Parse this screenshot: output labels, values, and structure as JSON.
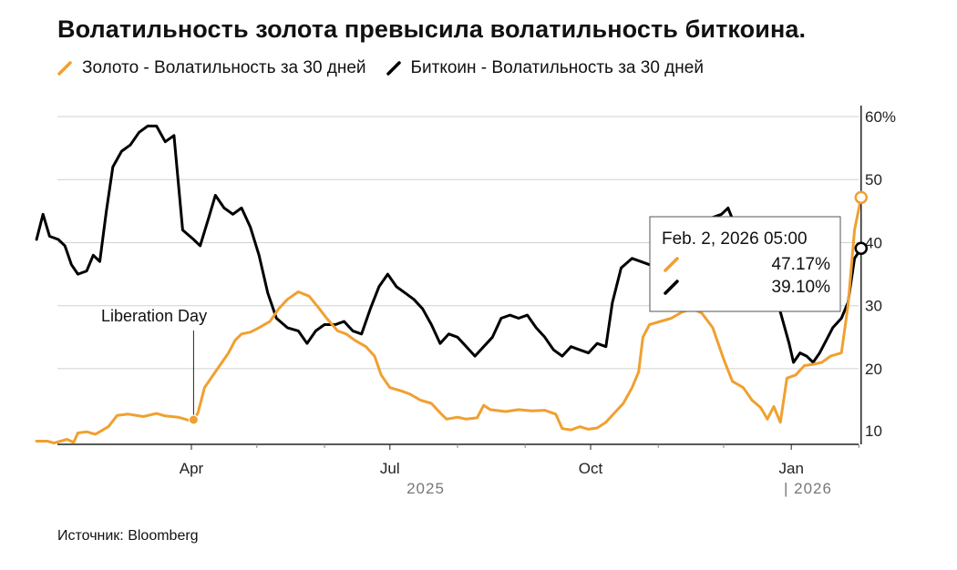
{
  "header": {
    "title": "Волатильность золота превысила волатильность биткоина."
  },
  "legend": {
    "gold_label": "Золото - Волатильность за 30 дней",
    "btc_label": "Биткоин - Волатильность за 30 дней"
  },
  "footer": {
    "source": "Источник: Bloomberg"
  },
  "colors": {
    "gold": "#f0a030",
    "btc": "#000000",
    "grid": "#d0d0d0",
    "baseline": "#222222"
  },
  "chart_data": {
    "type": "line",
    "title": "Волатильность золота превысила волатильность биткоина.",
    "xlabel": "",
    "ylabel": "",
    "ylim": [
      8,
      60
    ],
    "y_ticks": [
      "10",
      "20",
      "30",
      "40",
      "50",
      "60%"
    ],
    "y_tick_values": [
      10,
      20,
      30,
      40,
      50,
      60
    ],
    "x_tick_labels": [
      "Apr",
      "Jul",
      "Oct",
      "Jan"
    ],
    "year_labels": [
      "2025",
      "| 2026"
    ],
    "grid": true,
    "series": [
      {
        "name": "Золото - Волатильность за 30 дней",
        "color": "#f0a030",
        "points": [
          [
            "2025-01-20",
            8.5
          ],
          [
            "2025-01-25",
            8.5
          ],
          [
            "2025-01-28",
            8.2
          ],
          [
            "2025-02-03",
            8.8
          ],
          [
            "2025-02-06",
            8.3
          ],
          [
            "2025-02-08",
            9.8
          ],
          [
            "2025-02-12",
            10.0
          ],
          [
            "2025-02-16",
            9.6
          ],
          [
            "2025-02-22",
            10.8
          ],
          [
            "2025-02-26",
            12.6
          ],
          [
            "2025-03-03",
            12.8
          ],
          [
            "2025-03-10",
            12.4
          ],
          [
            "2025-03-16",
            12.9
          ],
          [
            "2025-03-20",
            12.5
          ],
          [
            "2025-03-26",
            12.3
          ],
          [
            "2025-03-31",
            11.8
          ],
          [
            "2025-04-02",
            11.9
          ],
          [
            "2025-04-04",
            13.0
          ],
          [
            "2025-04-07",
            17.0
          ],
          [
            "2025-04-10",
            18.5
          ],
          [
            "2025-04-14",
            20.5
          ],
          [
            "2025-04-18",
            22.5
          ],
          [
            "2025-04-21",
            24.5
          ],
          [
            "2025-04-24",
            25.5
          ],
          [
            "2025-04-28",
            25.8
          ],
          [
            "2025-05-02",
            26.5
          ],
          [
            "2025-05-07",
            27.5
          ],
          [
            "2025-05-11",
            29.5
          ],
          [
            "2025-05-15",
            31.0
          ],
          [
            "2025-05-20",
            32.2
          ],
          [
            "2025-05-25",
            31.5
          ],
          [
            "2025-05-29",
            29.8
          ],
          [
            "2025-06-02",
            28.0
          ],
          [
            "2025-06-07",
            26.0
          ],
          [
            "2025-06-11",
            25.5
          ],
          [
            "2025-06-15",
            24.5
          ],
          [
            "2025-06-20",
            23.5
          ],
          [
            "2025-06-24",
            22.0
          ],
          [
            "2025-06-27",
            19.0
          ],
          [
            "2025-07-01",
            17.0
          ],
          [
            "2025-07-06",
            16.5
          ],
          [
            "2025-07-10",
            16.0
          ],
          [
            "2025-07-15",
            15.0
          ],
          [
            "2025-07-20",
            14.5
          ],
          [
            "2025-07-24",
            13.0
          ],
          [
            "2025-07-27",
            12.0
          ],
          [
            "2025-08-01",
            12.3
          ],
          [
            "2025-08-05",
            12.0
          ],
          [
            "2025-08-10",
            12.2
          ],
          [
            "2025-08-13",
            14.2
          ],
          [
            "2025-08-16",
            13.5
          ],
          [
            "2025-08-23",
            13.2
          ],
          [
            "2025-08-29",
            13.5
          ],
          [
            "2025-09-04",
            13.3
          ],
          [
            "2025-09-10",
            13.4
          ],
          [
            "2025-09-15",
            12.8
          ],
          [
            "2025-09-18",
            10.5
          ],
          [
            "2025-09-22",
            10.3
          ],
          [
            "2025-09-26",
            10.8
          ],
          [
            "2025-09-30",
            10.4
          ],
          [
            "2025-10-04",
            10.6
          ],
          [
            "2025-10-08",
            11.5
          ],
          [
            "2025-10-12",
            13.0
          ],
          [
            "2025-10-16",
            14.5
          ],
          [
            "2025-10-20",
            17.0
          ],
          [
            "2025-10-23",
            19.5
          ],
          [
            "2025-10-25",
            25.0
          ],
          [
            "2025-10-28",
            27.0
          ],
          [
            "2025-11-02",
            27.5
          ],
          [
            "2025-11-07",
            28.0
          ],
          [
            "2025-11-12",
            29.0
          ],
          [
            "2025-11-17",
            29.5
          ],
          [
            "2025-11-21",
            28.8
          ],
          [
            "2025-11-26",
            26.5
          ],
          [
            "2025-12-01",
            21.5
          ],
          [
            "2025-12-05",
            18.0
          ],
          [
            "2025-12-10",
            17.0
          ],
          [
            "2025-12-14",
            15.0
          ],
          [
            "2025-12-18",
            13.8
          ],
          [
            "2025-12-21",
            12.0
          ],
          [
            "2025-12-24",
            14.0
          ],
          [
            "2025-12-27",
            11.5
          ],
          [
            "2025-12-30",
            18.5
          ],
          [
            "2026-01-03",
            19.0
          ],
          [
            "2026-01-07",
            20.5
          ],
          [
            "2026-01-11",
            20.7
          ],
          [
            "2026-01-15",
            21.0
          ],
          [
            "2026-01-19",
            22.0
          ],
          [
            "2026-01-24",
            22.5
          ],
          [
            "2026-01-27",
            30.0
          ],
          [
            "2026-01-30",
            42.0
          ],
          [
            "2026-02-02",
            47.17
          ]
        ]
      },
      {
        "name": "Биткоин - Волатильность за 30 дней",
        "color": "#000000",
        "points": [
          [
            "2025-01-20",
            40.5
          ],
          [
            "2025-01-23",
            44.5
          ],
          [
            "2025-01-26",
            41.0
          ],
          [
            "2025-01-30",
            40.5
          ],
          [
            "2025-02-02",
            39.5
          ],
          [
            "2025-02-05",
            36.5
          ],
          [
            "2025-02-08",
            35.0
          ],
          [
            "2025-02-12",
            35.5
          ],
          [
            "2025-02-15",
            38.0
          ],
          [
            "2025-02-18",
            37.0
          ],
          [
            "2025-02-21",
            45.0
          ],
          [
            "2025-02-24",
            52.0
          ],
          [
            "2025-02-28",
            54.5
          ],
          [
            "2025-03-04",
            55.5
          ],
          [
            "2025-03-08",
            57.5
          ],
          [
            "2025-03-12",
            58.5
          ],
          [
            "2025-03-16",
            58.5
          ],
          [
            "2025-03-20",
            56.0
          ],
          [
            "2025-03-24",
            57.0
          ],
          [
            "2025-03-28",
            42.0
          ],
          [
            "2025-04-02",
            40.5
          ],
          [
            "2025-04-05",
            39.5
          ],
          [
            "2025-04-09",
            44.0
          ],
          [
            "2025-04-12",
            47.5
          ],
          [
            "2025-04-16",
            45.5
          ],
          [
            "2025-04-20",
            44.5
          ],
          [
            "2025-04-24",
            45.5
          ],
          [
            "2025-04-28",
            42.5
          ],
          [
            "2025-05-02",
            38.0
          ],
          [
            "2025-05-06",
            32.0
          ],
          [
            "2025-05-10",
            28.0
          ],
          [
            "2025-05-15",
            26.5
          ],
          [
            "2025-05-20",
            26.0
          ],
          [
            "2025-05-24",
            24.0
          ],
          [
            "2025-05-28",
            26.0
          ],
          [
            "2025-06-01",
            27.0
          ],
          [
            "2025-06-06",
            27.0
          ],
          [
            "2025-06-10",
            27.5
          ],
          [
            "2025-06-14",
            26.0
          ],
          [
            "2025-06-18",
            25.5
          ],
          [
            "2025-06-22",
            29.5
          ],
          [
            "2025-06-26",
            33.0
          ],
          [
            "2025-06-30",
            35.0
          ],
          [
            "2025-07-04",
            33.0
          ],
          [
            "2025-07-08",
            32.0
          ],
          [
            "2025-07-12",
            31.0
          ],
          [
            "2025-07-16",
            29.5
          ],
          [
            "2025-07-20",
            27.0
          ],
          [
            "2025-07-24",
            24.0
          ],
          [
            "2025-07-28",
            25.5
          ],
          [
            "2025-08-01",
            25.0
          ],
          [
            "2025-08-05",
            23.5
          ],
          [
            "2025-08-09",
            22.0
          ],
          [
            "2025-08-13",
            23.5
          ],
          [
            "2025-08-17",
            25.0
          ],
          [
            "2025-08-21",
            28.0
          ],
          [
            "2025-08-25",
            28.5
          ],
          [
            "2025-08-29",
            28.0
          ],
          [
            "2025-09-02",
            28.5
          ],
          [
            "2025-09-06",
            26.5
          ],
          [
            "2025-09-10",
            25.0
          ],
          [
            "2025-09-14",
            23.0
          ],
          [
            "2025-09-18",
            22.0
          ],
          [
            "2025-09-22",
            23.5
          ],
          [
            "2025-09-26",
            23.0
          ],
          [
            "2025-09-30",
            22.5
          ],
          [
            "2025-10-04",
            24.0
          ],
          [
            "2025-10-08",
            23.5
          ],
          [
            "2025-10-11",
            30.5
          ],
          [
            "2025-10-15",
            36.0
          ],
          [
            "2025-10-20",
            37.5
          ],
          [
            "2025-10-24",
            37.0
          ],
          [
            "2025-10-28",
            36.5
          ],
          [
            "2025-11-02",
            37.0
          ],
          [
            "2025-11-06",
            35.5
          ],
          [
            "2025-11-10",
            35.0
          ],
          [
            "2025-11-14",
            37.0
          ],
          [
            "2025-11-18",
            39.0
          ],
          [
            "2025-11-22",
            42.5
          ],
          [
            "2025-11-26",
            44.0
          ],
          [
            "2025-11-30",
            44.5
          ],
          [
            "2025-12-03",
            45.5
          ],
          [
            "2025-12-07",
            42.0
          ],
          [
            "2025-12-11",
            40.0
          ],
          [
            "2025-12-15",
            36.0
          ],
          [
            "2025-12-19",
            33.0
          ],
          [
            "2025-12-23",
            31.0
          ],
          [
            "2025-12-27",
            29.0
          ],
          [
            "2025-12-31",
            24.0
          ],
          [
            "2026-01-02",
            21.0
          ],
          [
            "2026-01-05",
            22.5
          ],
          [
            "2026-01-08",
            22.0
          ],
          [
            "2026-01-11",
            21.0
          ],
          [
            "2026-01-14",
            22.5
          ],
          [
            "2026-01-17",
            24.5
          ],
          [
            "2026-01-20",
            26.5
          ],
          [
            "2026-01-24",
            28.0
          ],
          [
            "2026-01-27",
            30.5
          ],
          [
            "2026-01-30",
            37.5
          ],
          [
            "2026-02-02",
            39.1
          ]
        ]
      }
    ],
    "annotations": [
      {
        "label": "Liberation Day",
        "x": "2025-04-02",
        "y": 11.9
      }
    ],
    "tooltip": {
      "date": "Feb. 2, 2026 05:00",
      "gold_value": "47.17%",
      "btc_value": "39.10%",
      "x": "2026-02-02"
    }
  }
}
